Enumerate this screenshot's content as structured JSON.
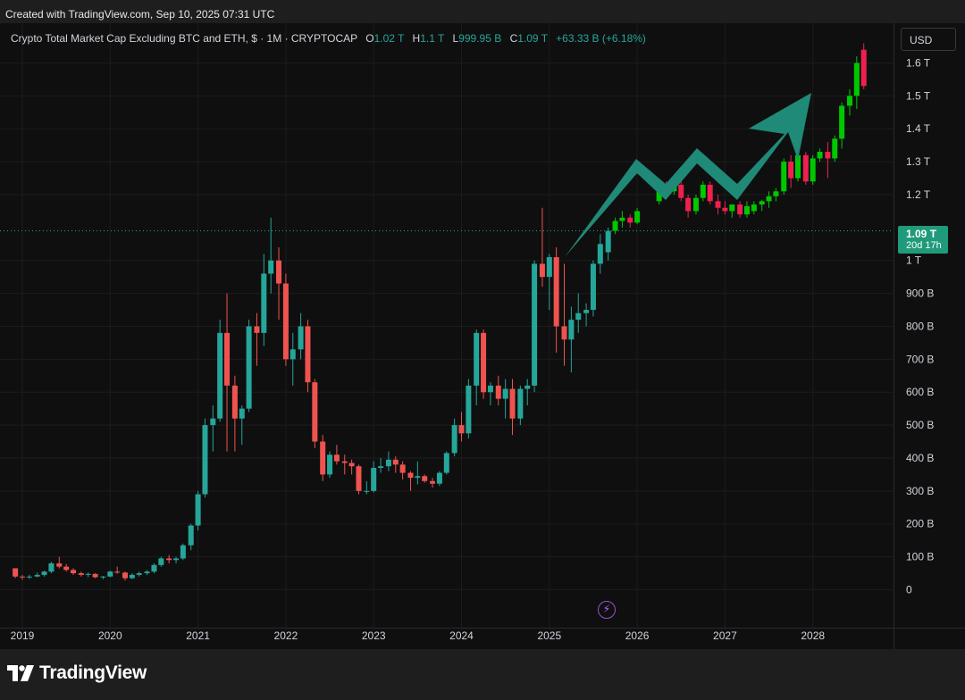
{
  "header": {
    "created_text": "Created with TradingView.com, Sep 10, 2025 07:31 UTC"
  },
  "legend": {
    "title": "Crypto Total Market Cap Excluding BTC and ETH, $ · 1M · CRYPTOCAP",
    "o_label": "O",
    "o_value": "1.02 T",
    "h_label": "H",
    "h_value": "1.1 T",
    "l_label": "L",
    "l_value": "999.95 B",
    "c_label": "C",
    "c_value": "1.09 T",
    "change": "+63.33 B (+6.18%)"
  },
  "toolbar": {
    "currency_label": "USD"
  },
  "price_tag": {
    "value": "1.09 T",
    "countdown": "20d 17h"
  },
  "colors": {
    "up": "#26a69a",
    "down": "#ef5350",
    "proj_up": "#00c800",
    "proj_down": "#ef2050",
    "arrow": "#1f8a77",
    "background": "#0f0f0f"
  },
  "icons": {
    "flash": "lightning-icon",
    "logo": "tradingview-logo-icon"
  },
  "footer": {
    "brand": "TradingView"
  },
  "chart_data": {
    "type": "candlestick",
    "ylim": [
      -15,
      1680
    ],
    "y_ticks": [
      {
        "v": 1600,
        "label": "1.6 T"
      },
      {
        "v": 1500,
        "label": "1.5 T"
      },
      {
        "v": 1400,
        "label": "1.4 T"
      },
      {
        "v": 1300,
        "label": "1.3 T"
      },
      {
        "v": 1200,
        "label": "1.2 T"
      },
      {
        "v": 1000,
        "label": "1 T"
      },
      {
        "v": 900,
        "label": "900 B"
      },
      {
        "v": 800,
        "label": "800 B"
      },
      {
        "v": 700,
        "label": "700 B"
      },
      {
        "v": 600,
        "label": "600 B"
      },
      {
        "v": 500,
        "label": "500 B"
      },
      {
        "v": 400,
        "label": "400 B"
      },
      {
        "v": 300,
        "label": "300 B"
      },
      {
        "v": 200,
        "label": "200 B"
      },
      {
        "v": 100,
        "label": "100 B"
      },
      {
        "v": 0,
        "label": "0"
      }
    ],
    "x_ticks": [
      "2019",
      "2020",
      "2021",
      "2022",
      "2023",
      "2024",
      "2025",
      "2026",
      "2027",
      "2028"
    ],
    "x_start_year": 2019,
    "current_price": 1090,
    "candles": [
      [
        2018.92,
        65,
        65,
        35,
        40
      ],
      [
        2019.0,
        40,
        45,
        30,
        38
      ],
      [
        2019.08,
        38,
        45,
        33,
        40
      ],
      [
        2019.17,
        40,
        52,
        38,
        45
      ],
      [
        2019.25,
        45,
        58,
        40,
        55
      ],
      [
        2019.33,
        55,
        85,
        50,
        80
      ],
      [
        2019.42,
        80,
        100,
        65,
        70
      ],
      [
        2019.5,
        70,
        78,
        55,
        60
      ],
      [
        2019.58,
        60,
        65,
        45,
        50
      ],
      [
        2019.67,
        50,
        55,
        40,
        45
      ],
      [
        2019.75,
        45,
        52,
        38,
        48
      ],
      [
        2019.83,
        48,
        50,
        35,
        38
      ],
      [
        2019.92,
        38,
        42,
        32,
        40
      ],
      [
        2020.0,
        40,
        58,
        38,
        55
      ],
      [
        2020.08,
        55,
        70,
        48,
        52
      ],
      [
        2020.17,
        52,
        55,
        28,
        35
      ],
      [
        2020.25,
        35,
        50,
        32,
        45
      ],
      [
        2020.33,
        45,
        55,
        40,
        50
      ],
      [
        2020.42,
        50,
        60,
        45,
        55
      ],
      [
        2020.5,
        55,
        80,
        50,
        75
      ],
      [
        2020.58,
        75,
        100,
        70,
        95
      ],
      [
        2020.67,
        95,
        105,
        80,
        90
      ],
      [
        2020.75,
        90,
        100,
        80,
        95
      ],
      [
        2020.83,
        95,
        140,
        90,
        135
      ],
      [
        2020.92,
        135,
        200,
        120,
        195
      ],
      [
        2021.0,
        195,
        300,
        180,
        290
      ],
      [
        2021.08,
        290,
        520,
        280,
        500
      ],
      [
        2021.17,
        500,
        560,
        420,
        520
      ],
      [
        2021.25,
        520,
        820,
        510,
        780
      ],
      [
        2021.33,
        780,
        900,
        420,
        620
      ],
      [
        2021.42,
        620,
        650,
        420,
        520
      ],
      [
        2021.5,
        520,
        560,
        440,
        550
      ],
      [
        2021.58,
        550,
        820,
        540,
        800
      ],
      [
        2021.67,
        800,
        840,
        680,
        780
      ],
      [
        2021.75,
        780,
        1020,
        740,
        960
      ],
      [
        2021.83,
        960,
        1130,
        900,
        1000
      ],
      [
        2021.92,
        1000,
        1040,
        820,
        930
      ],
      [
        2022.0,
        930,
        960,
        680,
        700
      ],
      [
        2022.08,
        700,
        780,
        620,
        730
      ],
      [
        2022.17,
        730,
        840,
        700,
        800
      ],
      [
        2022.25,
        800,
        820,
        600,
        630
      ],
      [
        2022.33,
        630,
        640,
        430,
        450
      ],
      [
        2022.42,
        450,
        470,
        330,
        350
      ],
      [
        2022.5,
        350,
        420,
        340,
        410
      ],
      [
        2022.58,
        410,
        440,
        380,
        390
      ],
      [
        2022.67,
        390,
        410,
        350,
        385
      ],
      [
        2022.75,
        385,
        395,
        350,
        375
      ],
      [
        2022.83,
        375,
        380,
        290,
        300
      ],
      [
        2022.92,
        300,
        330,
        290,
        300
      ],
      [
        2023.0,
        300,
        390,
        295,
        370
      ],
      [
        2023.08,
        370,
        400,
        355,
        375
      ],
      [
        2023.17,
        375,
        420,
        360,
        395
      ],
      [
        2023.25,
        395,
        405,
        355,
        380
      ],
      [
        2023.33,
        380,
        390,
        335,
        355
      ],
      [
        2023.42,
        355,
        360,
        300,
        340
      ],
      [
        2023.5,
        340,
        390,
        320,
        345
      ],
      [
        2023.58,
        345,
        350,
        325,
        330
      ],
      [
        2023.67,
        330,
        340,
        310,
        322
      ],
      [
        2023.75,
        322,
        360,
        315,
        355
      ],
      [
        2023.83,
        355,
        420,
        350,
        415
      ],
      [
        2023.92,
        415,
        520,
        405,
        500
      ],
      [
        2024.0,
        500,
        540,
        450,
        475
      ],
      [
        2024.08,
        475,
        640,
        460,
        620
      ],
      [
        2024.17,
        620,
        790,
        560,
        780
      ],
      [
        2024.25,
        780,
        790,
        580,
        600
      ],
      [
        2024.33,
        600,
        630,
        560,
        620
      ],
      [
        2024.42,
        620,
        650,
        560,
        580
      ],
      [
        2024.5,
        580,
        640,
        520,
        610
      ],
      [
        2024.58,
        610,
        640,
        470,
        520
      ],
      [
        2024.67,
        520,
        620,
        500,
        610
      ],
      [
        2024.75,
        610,
        640,
        560,
        620
      ],
      [
        2024.83,
        620,
        1000,
        600,
        990
      ],
      [
        2024.92,
        990,
        1160,
        920,
        950
      ],
      [
        2025.0,
        950,
        1020,
        850,
        1010
      ],
      [
        2025.08,
        1010,
        1040,
        720,
        800
      ],
      [
        2025.17,
        800,
        990,
        680,
        760
      ],
      [
        2025.25,
        760,
        860,
        660,
        820
      ],
      [
        2025.33,
        820,
        900,
        780,
        840
      ],
      [
        2025.42,
        840,
        870,
        800,
        850
      ],
      [
        2025.5,
        850,
        1000,
        830,
        990
      ],
      [
        2025.58,
        990,
        1080,
        960,
        1050
      ],
      [
        2025.67,
        1025,
        1100,
        1000,
        1090
      ],
      [
        2025.75,
        1090,
        1130,
        1080,
        1120
      ],
      [
        2025.83,
        1120,
        1150,
        1100,
        1130
      ],
      [
        2025.92,
        1130,
        1140,
        1100,
        1115
      ],
      [
        2026.0,
        1115,
        1160,
        1110,
        1150
      ],
      [
        2026.25,
        1180,
        1240,
        1170,
        1220
      ],
      [
        2026.33,
        1220,
        1240,
        1190,
        1210
      ],
      [
        2026.42,
        1210,
        1240,
        1200,
        1230
      ],
      [
        2026.5,
        1230,
        1240,
        1180,
        1190
      ],
      [
        2026.58,
        1190,
        1200,
        1130,
        1150
      ],
      [
        2026.67,
        1150,
        1200,
        1140,
        1190
      ],
      [
        2026.75,
        1190,
        1240,
        1180,
        1230
      ],
      [
        2026.83,
        1230,
        1240,
        1170,
        1180
      ],
      [
        2026.92,
        1180,
        1200,
        1140,
        1160
      ],
      [
        2027.0,
        1160,
        1180,
        1140,
        1150
      ],
      [
        2027.08,
        1150,
        1170,
        1130,
        1170
      ],
      [
        2027.17,
        1170,
        1180,
        1130,
        1140
      ],
      [
        2027.25,
        1140,
        1180,
        1130,
        1165
      ],
      [
        2027.33,
        1150,
        1180,
        1140,
        1170
      ],
      [
        2027.42,
        1170,
        1185,
        1150,
        1180
      ],
      [
        2027.5,
        1180,
        1210,
        1160,
        1195
      ],
      [
        2027.58,
        1195,
        1220,
        1180,
        1210
      ],
      [
        2027.67,
        1210,
        1310,
        1200,
        1300
      ],
      [
        2027.75,
        1300,
        1320,
        1220,
        1250
      ],
      [
        2027.83,
        1250,
        1330,
        1240,
        1320
      ],
      [
        2027.92,
        1320,
        1330,
        1230,
        1240
      ],
      [
        2028.0,
        1240,
        1320,
        1230,
        1310
      ],
      [
        2028.08,
        1310,
        1340,
        1300,
        1330
      ],
      [
        2028.17,
        1330,
        1360,
        1250,
        1310
      ],
      [
        2028.25,
        1310,
        1380,
        1300,
        1370
      ],
      [
        2028.33,
        1370,
        1480,
        1340,
        1470
      ],
      [
        2028.42,
        1470,
        1520,
        1440,
        1500
      ],
      [
        2028.5,
        1500,
        1620,
        1460,
        1600
      ],
      [
        2028.58,
        1640,
        1660,
        1520,
        1530
      ]
    ]
  }
}
